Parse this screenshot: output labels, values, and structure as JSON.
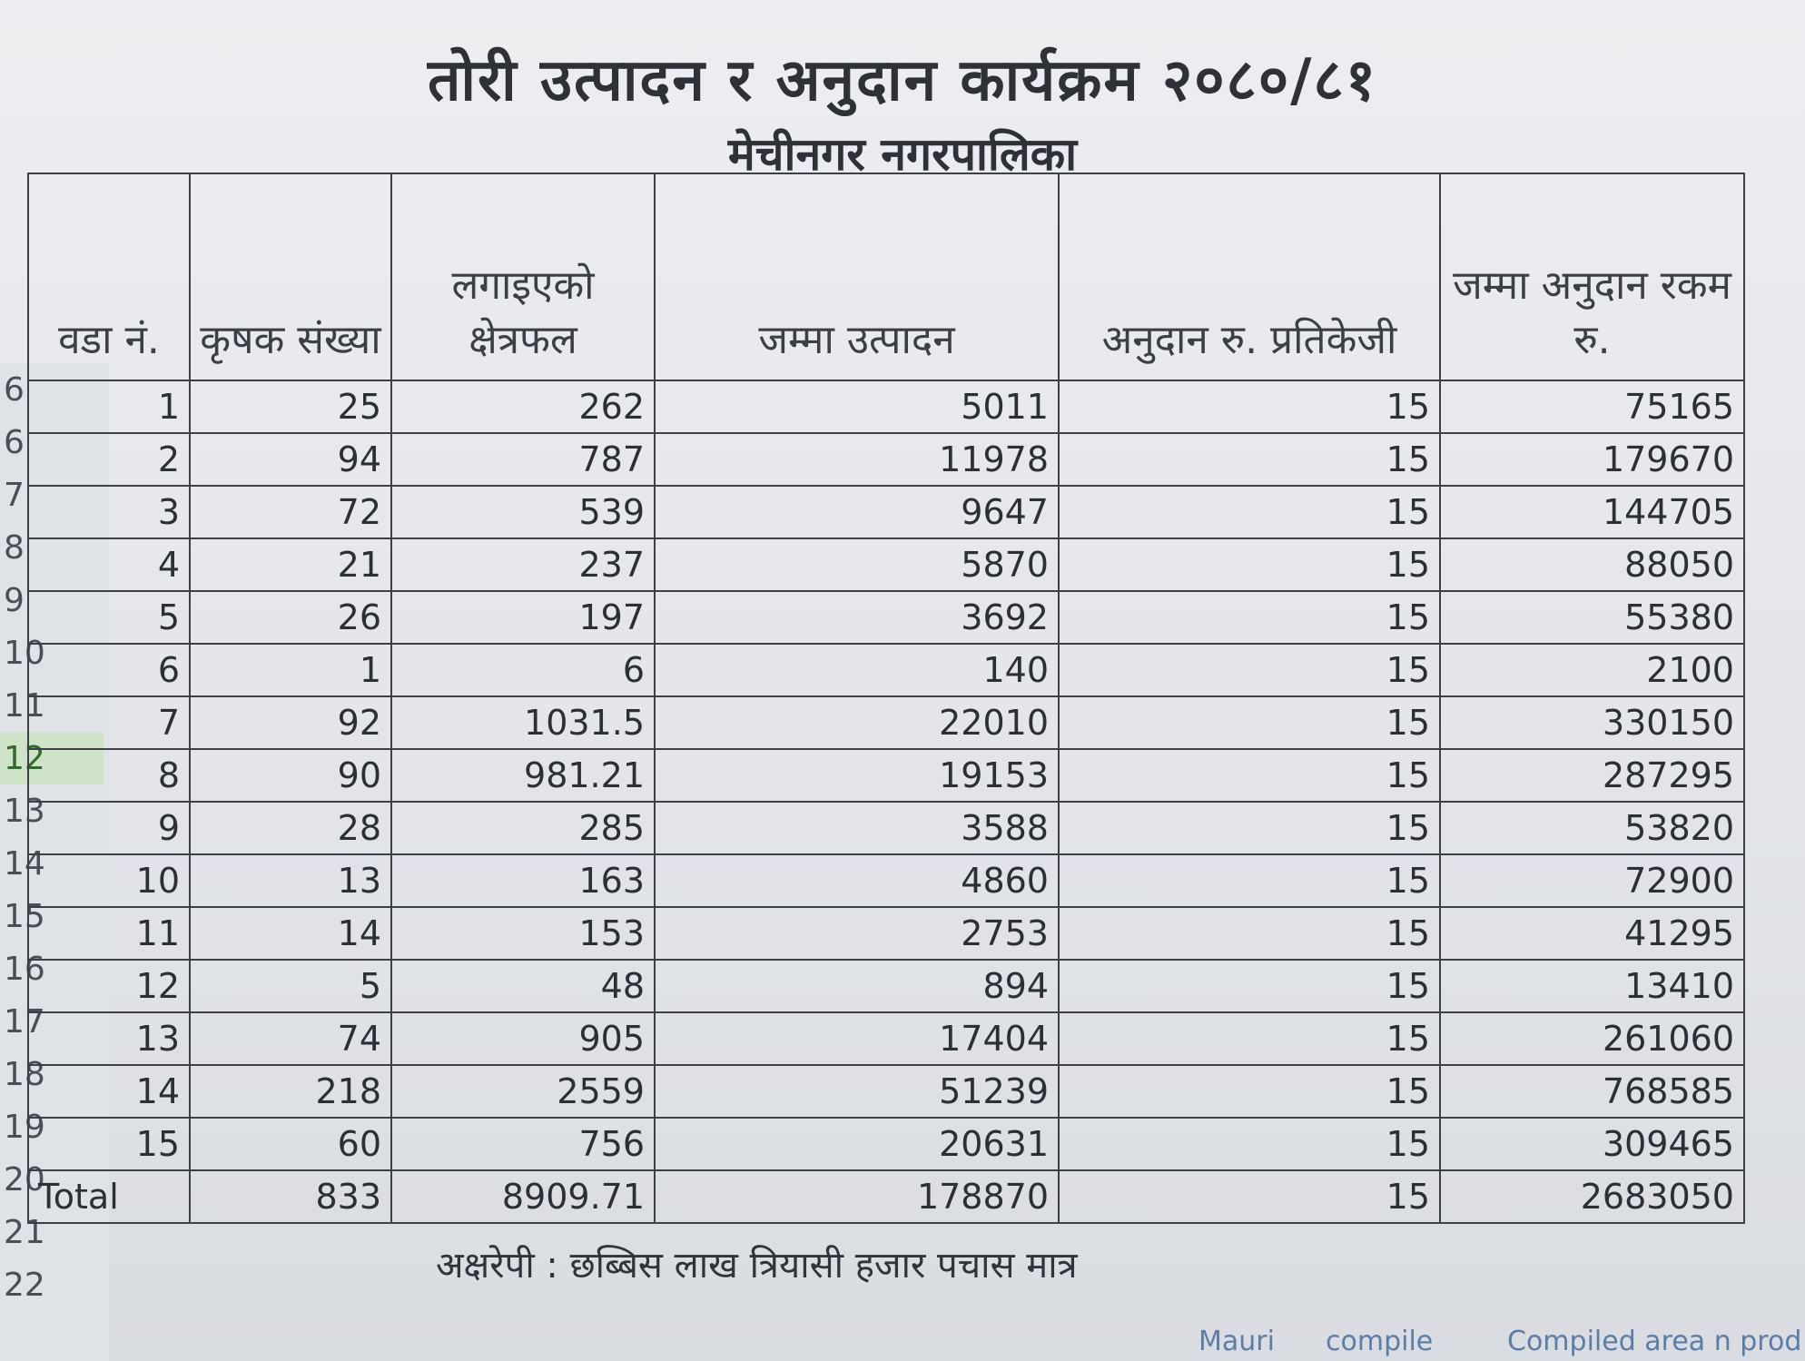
{
  "title": "तोरी उत्पादन र अनुदान कार्यक्रम २०८०/८१",
  "subtitle": "मेचीनगर नगरपालिका",
  "columns": [
    "वडा नं.",
    "कृषक संख्या",
    "लगाइएको क्षेत्रफल",
    "जम्मा उत्पादन",
    "अनुदान रु. प्रतिकेजी",
    "जम्मा अनुदान रकम रु."
  ],
  "row_numbers": [
    "6",
    "6",
    "7",
    "8",
    "9",
    "10",
    "11",
    "12",
    "13",
    "14",
    "15",
    "16",
    "17",
    "18",
    "19",
    "20",
    "21",
    "22"
  ],
  "active_row": "12",
  "rows": [
    [
      "1",
      "25",
      "262",
      "5011",
      "15",
      "75165"
    ],
    [
      "2",
      "94",
      "787",
      "11978",
      "15",
      "179670"
    ],
    [
      "3",
      "72",
      "539",
      "9647",
      "15",
      "144705"
    ],
    [
      "4",
      "21",
      "237",
      "5870",
      "15",
      "88050"
    ],
    [
      "5",
      "26",
      "197",
      "3692",
      "15",
      "55380"
    ],
    [
      "6",
      "1",
      "6",
      "140",
      "15",
      "2100"
    ],
    [
      "7",
      "92",
      "1031.5",
      "22010",
      "15",
      "330150"
    ],
    [
      "8",
      "90",
      "981.21",
      "19153",
      "15",
      "287295"
    ],
    [
      "9",
      "28",
      "285",
      "3588",
      "15",
      "53820"
    ],
    [
      "10",
      "13",
      "163",
      "4860",
      "15",
      "72900"
    ],
    [
      "11",
      "14",
      "153",
      "2753",
      "15",
      "41295"
    ],
    [
      "12",
      "5",
      "48",
      "894",
      "15",
      "13410"
    ],
    [
      "13",
      "74",
      "905",
      "17404",
      "15",
      "261060"
    ],
    [
      "14",
      "218",
      "2559",
      "51239",
      "15",
      "768585"
    ],
    [
      "15",
      "60",
      "756",
      "20631",
      "15",
      "309465"
    ]
  ],
  "total": {
    "label": "Total",
    "farmers": "833",
    "area": "8909.71",
    "production": "178870",
    "subsidy_rate": "15",
    "subsidy_amount": "2683050"
  },
  "amount_in_words": "अक्षरेपी : छब्बिस लाख त्रियासी हजार पचास मात्र",
  "status_bar": [
    "Mauri",
    "compile",
    "Compiled area n prod"
  ],
  "colors": {
    "active_row_highlight": "#cfe3c8",
    "status_text": "#5a7ea8"
  }
}
